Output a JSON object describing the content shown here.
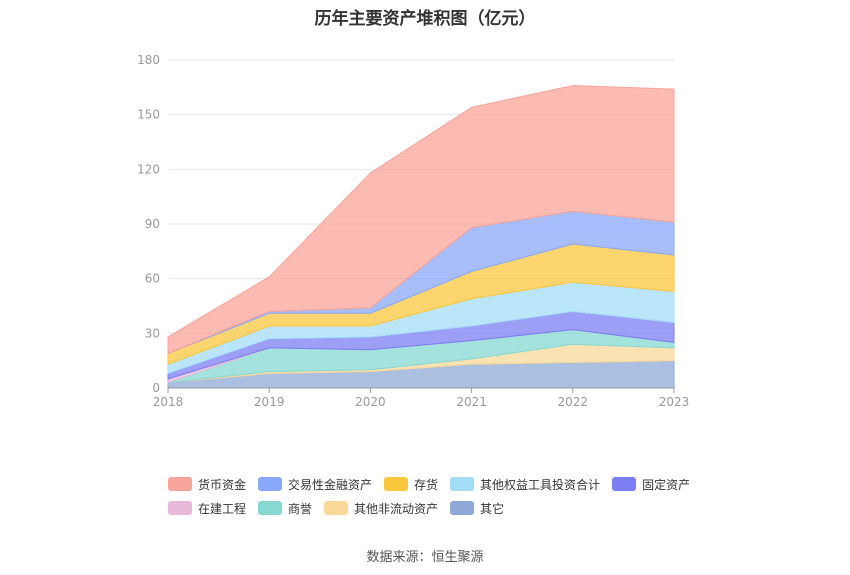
{
  "chart_data": {
    "type": "area",
    "stacked": true,
    "title": "历年主要资产堆积图（亿元）",
    "categories": [
      "2018",
      "2019",
      "2020",
      "2021",
      "2022",
      "2023"
    ],
    "ylim": [
      0,
      180
    ],
    "yticks": [
      0,
      30,
      60,
      90,
      120,
      150,
      180
    ],
    "grid": true,
    "legend_position": "bottom",
    "series": [
      {
        "name": "其它",
        "color": "#8FA9D6",
        "values": [
          3,
          8,
          9,
          13,
          14,
          15
        ]
      },
      {
        "name": "其他非流动资产",
        "color": "#FAD89A",
        "values": [
          0,
          1,
          1,
          3,
          10,
          7
        ]
      },
      {
        "name": "商誉",
        "color": "#86D8D3",
        "values": [
          0,
          13,
          11,
          10,
          8,
          3
        ]
      },
      {
        "name": "在建工程",
        "color": "#E8B9D8",
        "values": [
          2,
          0,
          0,
          0,
          0,
          0
        ]
      },
      {
        "name": "固定资产",
        "color": "#7B7FF2",
        "values": [
          3,
          5,
          7,
          8,
          10,
          11
        ]
      },
      {
        "name": "其他权益工具投资合计",
        "color": "#A4DDF8",
        "values": [
          5,
          7,
          6,
          15,
          16,
          17
        ]
      },
      {
        "name": "存货",
        "color": "#FBC73F",
        "values": [
          6,
          7,
          7,
          15,
          21,
          20
        ]
      },
      {
        "name": "交易性金融资产",
        "color": "#8AA8FA",
        "values": [
          0,
          1,
          3,
          24,
          18,
          18
        ]
      },
      {
        "name": "货币资金",
        "color": "#F9A49A",
        "values": [
          9,
          19,
          74,
          66,
          69,
          73
        ]
      }
    ],
    "legend_order": [
      "货币资金",
      "交易性金融资产",
      "存货",
      "其他权益工具投资合计",
      "固定资产",
      "在建工程",
      "商誉",
      "其他非流动资产",
      "其它"
    ]
  },
  "source": "数据来源：恒生聚源"
}
